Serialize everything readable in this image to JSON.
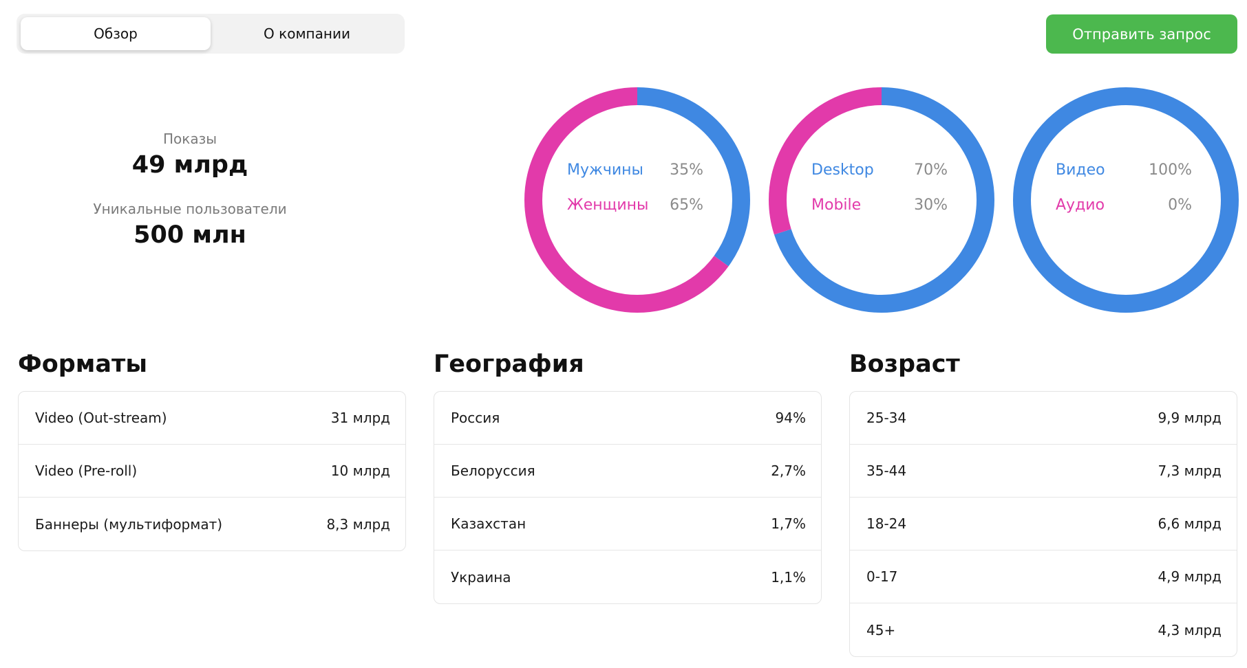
{
  "tabs": [
    {
      "label": "Обзор",
      "active": true
    },
    {
      "label": "О компании",
      "active": false
    }
  ],
  "action_button": {
    "label": "Отправить запрос",
    "color": "#4cb84e"
  },
  "stats": {
    "impressions": {
      "label": "Показы",
      "value": "49 млрд"
    },
    "unique_users": {
      "label": "Уникальные пользователи",
      "value": "500 млн"
    }
  },
  "colors": {
    "blue": "#3f88e2",
    "pink": "#e23aaa"
  },
  "donuts": [
    {
      "items": [
        {
          "name": "Мужчины",
          "pct": "35%",
          "value": 35,
          "color": "#3f88e2"
        },
        {
          "name": "Женщины",
          "pct": "65%",
          "value": 65,
          "color": "#e23aaa"
        }
      ]
    },
    {
      "items": [
        {
          "name": "Desktop",
          "pct": "70%",
          "value": 70,
          "color": "#3f88e2"
        },
        {
          "name": "Mobile",
          "pct": "30%",
          "value": 30,
          "color": "#e23aaa"
        }
      ]
    },
    {
      "items": [
        {
          "name": "Видео",
          "pct": "100%",
          "value": 100,
          "color": "#3f88e2"
        },
        {
          "name": "Аудио",
          "pct": "0%",
          "value": 0,
          "color": "#e23aaa"
        }
      ]
    }
  ],
  "formats": {
    "title": "Форматы",
    "rows": [
      {
        "label": "Video (Out-stream)",
        "value": "31 млрд"
      },
      {
        "label": "Video (Pre-roll)",
        "value": "10 млрд"
      },
      {
        "label": "Баннеры (мультиформат)",
        "value": "8,3 млрд"
      }
    ]
  },
  "geography": {
    "title": "География",
    "rows": [
      {
        "label": "Россия",
        "value": "94%"
      },
      {
        "label": "Белоруссия",
        "value": "2,7%"
      },
      {
        "label": "Казахстан",
        "value": "1,7%"
      },
      {
        "label": "Украина",
        "value": "1,1%"
      }
    ]
  },
  "age": {
    "title": "Возраст",
    "rows": [
      {
        "label": "25-34",
        "value": "9,9 млрд"
      },
      {
        "label": "35-44",
        "value": "7,3 млрд"
      },
      {
        "label": "18-24",
        "value": "6,6 млрд"
      },
      {
        "label": "0-17",
        "value": "4,9 млрд"
      },
      {
        "label": "45+",
        "value": "4,3 млрд"
      }
    ]
  }
}
